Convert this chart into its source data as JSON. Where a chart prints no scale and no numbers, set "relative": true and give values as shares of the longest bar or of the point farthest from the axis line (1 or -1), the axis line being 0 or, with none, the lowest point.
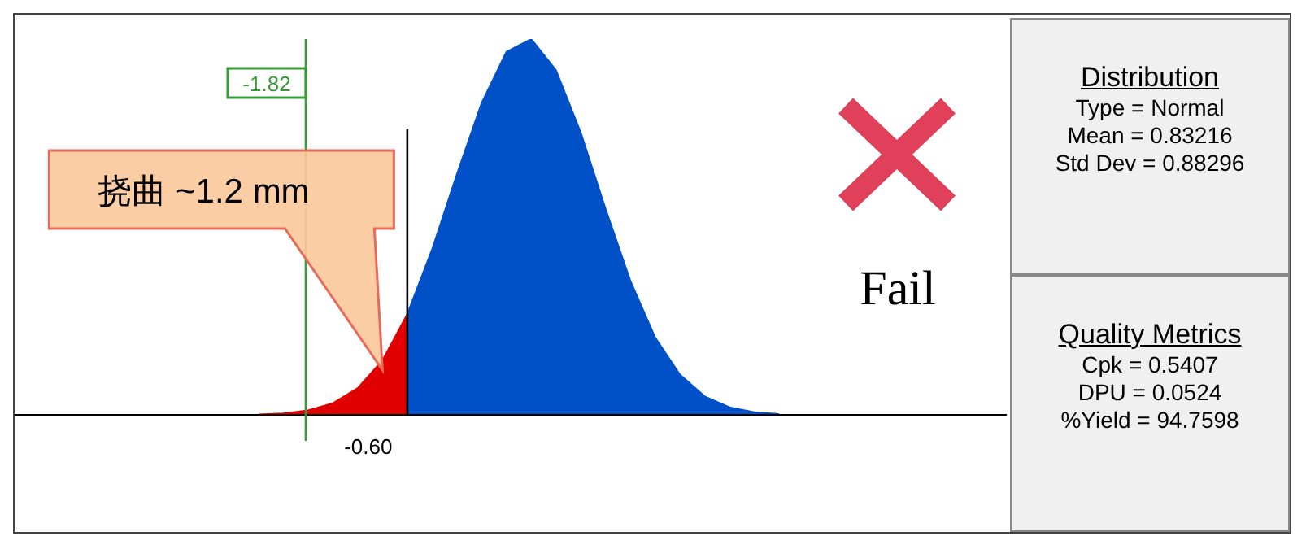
{
  "chart_data": {
    "type": "area",
    "relative": true,
    "grid": false,
    "legend": false,
    "categories": [
      null,
      null,
      null,
      null,
      null,
      null,
      null,
      null,
      null,
      null,
      null,
      null,
      null,
      null,
      null,
      null,
      null,
      null,
      null,
      null,
      null,
      null
    ],
    "series": [
      {
        "color": "#e00000",
        "values": [
          0.001,
          0.004,
          0.012,
          0.031,
          0.071,
          0.145,
          0.268,
          null,
          null,
          null,
          null,
          null,
          null,
          null,
          null,
          null,
          null,
          null,
          null,
          null,
          null,
          null
        ]
      },
      {
        "color": "#0050c8",
        "values": [
          null,
          null,
          null,
          null,
          null,
          null,
          0.268,
          0.44,
          0.64,
          0.83,
          0.966,
          1,
          0.917,
          0.751,
          0.548,
          0.357,
          0.206,
          0.107,
          0.049,
          0.02,
          0.007,
          0.002
        ]
      }
    ],
    "annotations": [
      "Fail",
      "Distribution",
      "Type = Normal",
      "Mean = 0.83216",
      "Std Dev = 0.88296",
      "Quality Metrics",
      "Cpk = 0.5407",
      "DPU = 0.0524",
      "%Yield = 94.7598",
      "挠曲 ~1.2 mm",
      "-1.82",
      "-0.60"
    ]
  }
}
